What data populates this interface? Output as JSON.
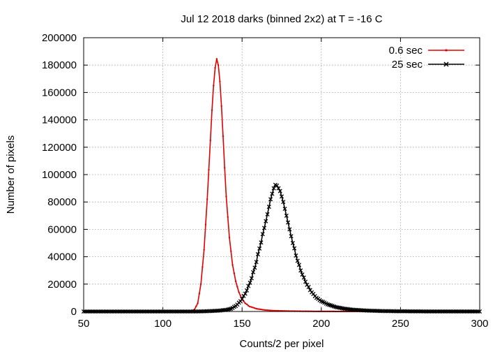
{
  "chart_data": {
    "type": "line",
    "title": "Jul 12 2018 darks (binned 2x2) at T = -16 C",
    "xlabel": "Counts/2 per pixel",
    "ylabel": "Number of pixels",
    "xlim": [
      50,
      300
    ],
    "ylim": [
      0,
      200000
    ],
    "xticks": [
      50,
      100,
      150,
      200,
      250,
      300
    ],
    "yticks": [
      0,
      20000,
      40000,
      60000,
      80000,
      100000,
      120000,
      140000,
      160000,
      180000,
      200000
    ],
    "grid": true,
    "legend_position": "top-right",
    "series": [
      {
        "name": "0.6 sec",
        "color": "#e00000",
        "marker": "small-dot",
        "points": [
          [
            50,
            0
          ],
          [
            110,
            0
          ],
          [
            116,
            200
          ],
          [
            118,
            500
          ],
          [
            120,
            1500
          ],
          [
            122,
            6000
          ],
          [
            124,
            20000
          ],
          [
            126,
            45000
          ],
          [
            128,
            82000
          ],
          [
            130,
            125000
          ],
          [
            131,
            147000
          ],
          [
            132,
            165000
          ],
          [
            133,
            178000
          ],
          [
            134,
            184500
          ],
          [
            135,
            180000
          ],
          [
            136,
            168000
          ],
          [
            137,
            150000
          ],
          [
            138,
            128000
          ],
          [
            139,
            105000
          ],
          [
            140,
            84000
          ],
          [
            142,
            54000
          ],
          [
            144,
            34000
          ],
          [
            146,
            22000
          ],
          [
            148,
            14000
          ],
          [
            150,
            9000
          ],
          [
            152,
            6000
          ],
          [
            155,
            3500
          ],
          [
            160,
            1800
          ],
          [
            165,
            1000
          ],
          [
            170,
            600
          ],
          [
            180,
            300
          ],
          [
            190,
            150
          ],
          [
            200,
            80
          ],
          [
            220,
            20
          ],
          [
            250,
            0
          ],
          [
            300,
            0
          ]
        ]
      },
      {
        "name": "25 sec",
        "color": "#000000",
        "marker": "x",
        "points": [
          [
            50,
            0
          ],
          [
            120,
            0
          ],
          [
            125,
            100
          ],
          [
            130,
            300
          ],
          [
            135,
            600
          ],
          [
            140,
            1200
          ],
          [
            143,
            2000
          ],
          [
            146,
            4000
          ],
          [
            149,
            7500
          ],
          [
            152,
            13000
          ],
          [
            155,
            21000
          ],
          [
            158,
            32000
          ],
          [
            161,
            46000
          ],
          [
            164,
            61000
          ],
          [
            166,
            71000
          ],
          [
            168,
            82000
          ],
          [
            170,
            90000
          ],
          [
            171,
            92500
          ],
          [
            172,
            92000
          ],
          [
            174,
            88000
          ],
          [
            176,
            80000
          ],
          [
            178,
            70000
          ],
          [
            180,
            60000
          ],
          [
            182,
            50000
          ],
          [
            185,
            37000
          ],
          [
            188,
            27000
          ],
          [
            191,
            19500
          ],
          [
            194,
            14000
          ],
          [
            197,
            10000
          ],
          [
            200,
            7500
          ],
          [
            205,
            4800
          ],
          [
            210,
            3000
          ],
          [
            215,
            2000
          ],
          [
            220,
            1300
          ],
          [
            230,
            600
          ],
          [
            240,
            300
          ],
          [
            250,
            150
          ],
          [
            265,
            60
          ],
          [
            280,
            20
          ],
          [
            300,
            0
          ]
        ]
      }
    ]
  }
}
